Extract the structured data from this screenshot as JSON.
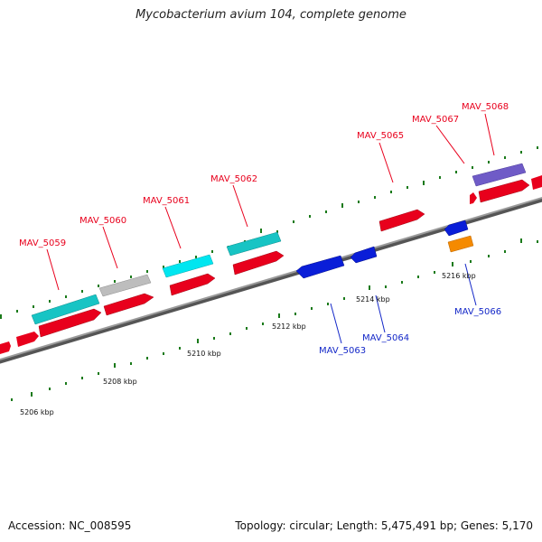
{
  "title": "Mycobacterium avium 104, complete genome",
  "footer": {
    "accession": "Accession: NC_008595",
    "summary": "Topology: circular; Length: 5,475,491 bp; Genes: 5,170"
  },
  "colors": {
    "forward_gene": "#e8001c",
    "reverse_gene": "#0a1ed8",
    "rrna_like": "#17c4c4",
    "bright_cyan": "#00e6f0",
    "pseudo": "#bdbdbd",
    "violet": "#6f5bc7",
    "orange": "#f58a00",
    "tick": "#1a7a1a",
    "backbone": "#8a8a8a",
    "forward_label": "#e8001c",
    "reverse_label": "#1428c8"
  },
  "scale_labels": [
    "5206 kbp",
    "5208 kbp",
    "5210 kbp",
    "5212 kbp",
    "5214 kbp",
    "5216 kbp"
  ],
  "gene_labels_forward": [
    "MAV_5059",
    "MAV_5060",
    "MAV_5061",
    "MAV_5062",
    "MAV_5065",
    "MAV_5067",
    "MAV_5068"
  ],
  "gene_labels_reverse": [
    "MAV_5063",
    "MAV_5064",
    "MAV_5066"
  ]
}
